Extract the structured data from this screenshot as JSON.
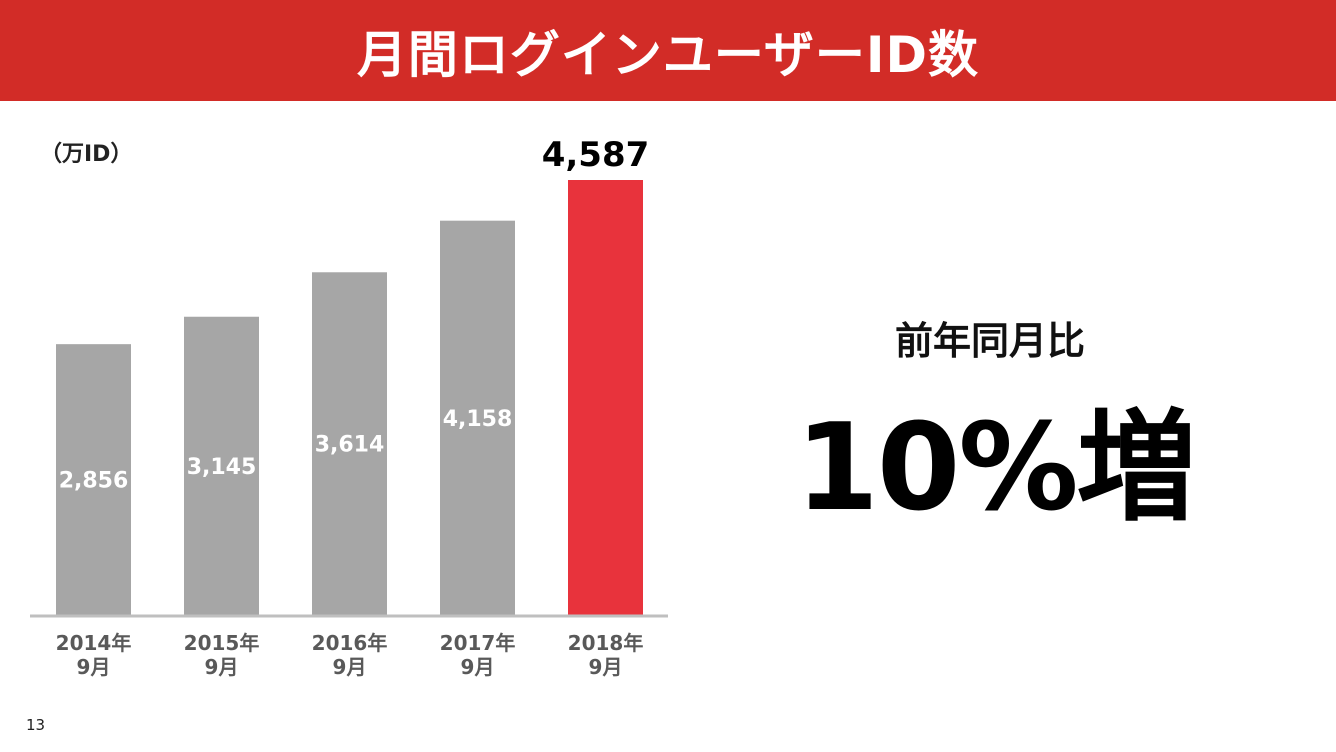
{
  "header": {
    "title": "月間ログインユーザーID数"
  },
  "chart_data": {
    "type": "bar",
    "title": "月間ログインユーザーID数",
    "unit_label": "（万ID）",
    "categories": [
      [
        "2014年",
        "9月"
      ],
      [
        "2015年",
        "9月"
      ],
      [
        "2016年",
        "9月"
      ],
      [
        "2017年",
        "9月"
      ],
      [
        "2018年",
        "9月"
      ]
    ],
    "values": [
      2856,
      3145,
      3614,
      4158,
      4587
    ],
    "value_labels": [
      "2,856",
      "3,145",
      "3,614",
      "4,158",
      "4,587"
    ],
    "highlight_index": 4,
    "ylim": [
      0,
      4587
    ],
    "grid": false,
    "colors": {
      "bar": "#a6a6a6",
      "highlight": "#e8333c",
      "baseline": "#bfbfbf"
    }
  },
  "summary": {
    "label": "前年同月比",
    "value": "10%増"
  },
  "footer": {
    "page_number": "13"
  }
}
